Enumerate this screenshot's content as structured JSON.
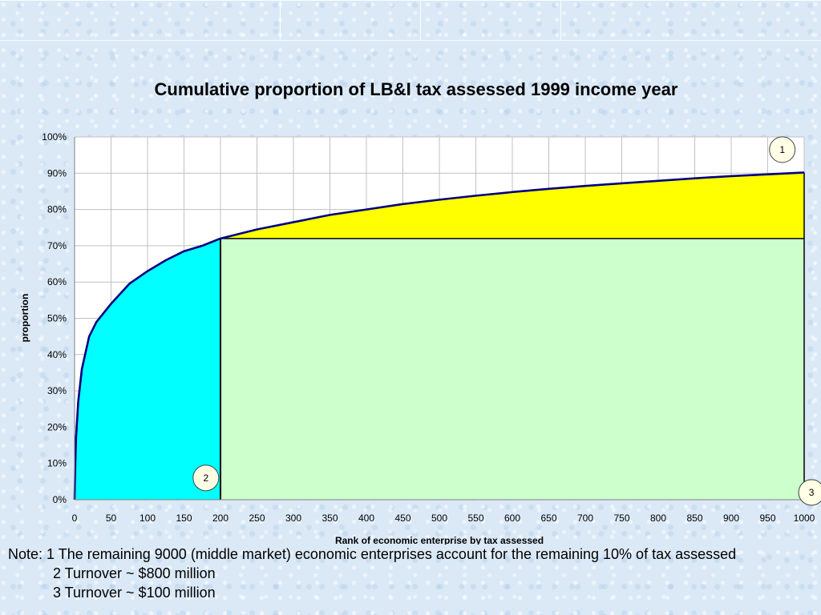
{
  "chart_data": {
    "type": "area",
    "title": "Cumulative proportion of LB&I tax assessed 1999 income year",
    "xlabel": "Rank of economic enterprise by tax assessed",
    "ylabel": "proportion",
    "xlim": [
      0,
      1000
    ],
    "ylim": [
      0,
      1
    ],
    "x_ticks": [
      "0",
      "50",
      "100",
      "150",
      "200",
      "250",
      "300",
      "350",
      "400",
      "450",
      "500",
      "550",
      "600",
      "650",
      "700",
      "750",
      "800",
      "850",
      "900",
      "950",
      "1000"
    ],
    "y_ticks": [
      "0%",
      "10%",
      "20%",
      "30%",
      "40%",
      "50%",
      "60%",
      "70%",
      "80%",
      "90%",
      "100%"
    ],
    "grid": true,
    "series": [
      {
        "x": [
          0,
          1,
          2,
          5,
          10,
          20,
          30,
          50,
          75,
          100,
          125,
          150,
          175,
          200,
          250,
          300,
          350,
          400,
          450,
          500,
          550,
          600,
          650,
          700,
          750,
          800,
          850,
          900,
          950,
          1000
        ],
        "values": [
          0,
          0.1,
          0.17,
          0.27,
          0.36,
          0.45,
          0.49,
          0.54,
          0.595,
          0.63,
          0.66,
          0.685,
          0.7,
          0.72,
          0.745,
          0.765,
          0.785,
          0.8,
          0.815,
          0.827,
          0.838,
          0.848,
          0.857,
          0.865,
          0.872,
          0.879,
          0.886,
          0.892,
          0.897,
          0.902
        ]
      }
    ],
    "regions": [
      {
        "id": "1",
        "x": [
          0,
          200
        ],
        "color": "#00ffff"
      },
      {
        "id": "2",
        "x": [
          200,
          1000
        ],
        "y": [
          0,
          0.72
        ],
        "color": "#ccffcc"
      },
      {
        "id": "3",
        "x": [
          200,
          1000
        ],
        "y_above": 0.72,
        "color": "#ffff00"
      }
    ],
    "annotations": [
      {
        "label": "1",
        "x": 970,
        "y": 0.965
      },
      {
        "label": "2",
        "x": 180,
        "y": 0.06
      },
      {
        "label": "3",
        "x": 1010,
        "y": 0.02
      }
    ],
    "colors": {
      "line": "#000080",
      "plot_bg": "#ffffff",
      "grid": "#c0c0c0"
    }
  },
  "note": {
    "line1": "Note: 1 The remaining 9000 (middle market) economic enterprises account for the remaining 10% of tax assessed",
    "line2": "2 Turnover ~ $800 million",
    "line3": "3 Turnover ~ $100 million"
  }
}
